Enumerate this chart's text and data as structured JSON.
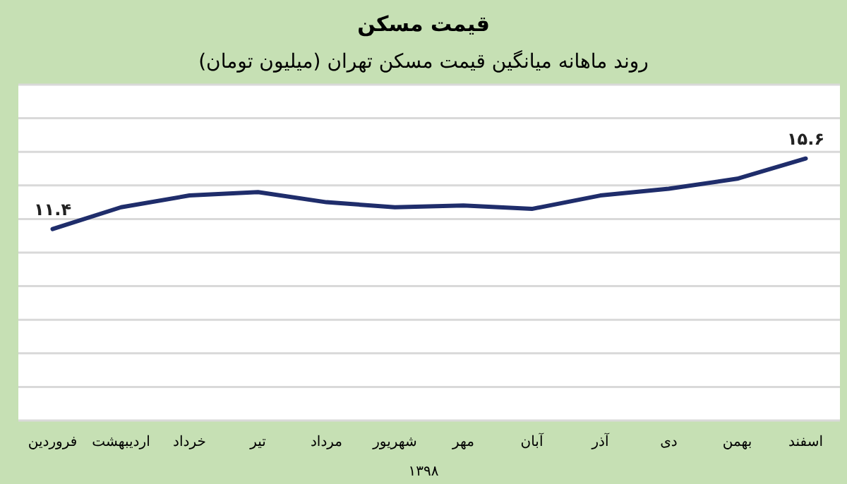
{
  "chart_data": {
    "type": "line",
    "title": "قیمت مسکن",
    "subtitle": "روند ماهانه میانگین قیمت مسکن تهران (میلیون تومان)",
    "xlabel": "۱۳۹۸",
    "categories": [
      "فروردین",
      "اردیبهشت",
      "خرداد",
      "تیر",
      "مرداد",
      "شهریور",
      "مهر",
      "آبان",
      "آذر",
      "دی",
      "بهمن",
      "اسفند"
    ],
    "series": [
      {
        "color": "#1f2d6b",
        "values": [
          11.4,
          12.7,
          13.4,
          13.6,
          13.0,
          12.7,
          12.8,
          12.6,
          13.4,
          13.8,
          14.4,
          15.6
        ],
        "value_labels": [
          "۱۱.۴",
          null,
          null,
          null,
          null,
          null,
          null,
          null,
          null,
          null,
          null,
          "۱۵.۶"
        ]
      }
    ],
    "ylim": [
      0,
      20
    ],
    "yticks": [
      {
        "value": 0,
        "label": null
      },
      {
        "value": 2,
        "label": null
      },
      {
        "value": 4,
        "label": null
      },
      {
        "value": 6,
        "label": null
      },
      {
        "value": 8,
        "label": null
      },
      {
        "value": 10,
        "label": null
      },
      {
        "value": 12,
        "label": null
      },
      {
        "value": 14,
        "label": null
      },
      {
        "value": 16,
        "label": null
      },
      {
        "value": 18,
        "label": null
      },
      {
        "value": 20,
        "label": null
      }
    ],
    "grid": "y",
    "tick_labels": "x",
    "marker": "none",
    "line_style": "solid"
  }
}
